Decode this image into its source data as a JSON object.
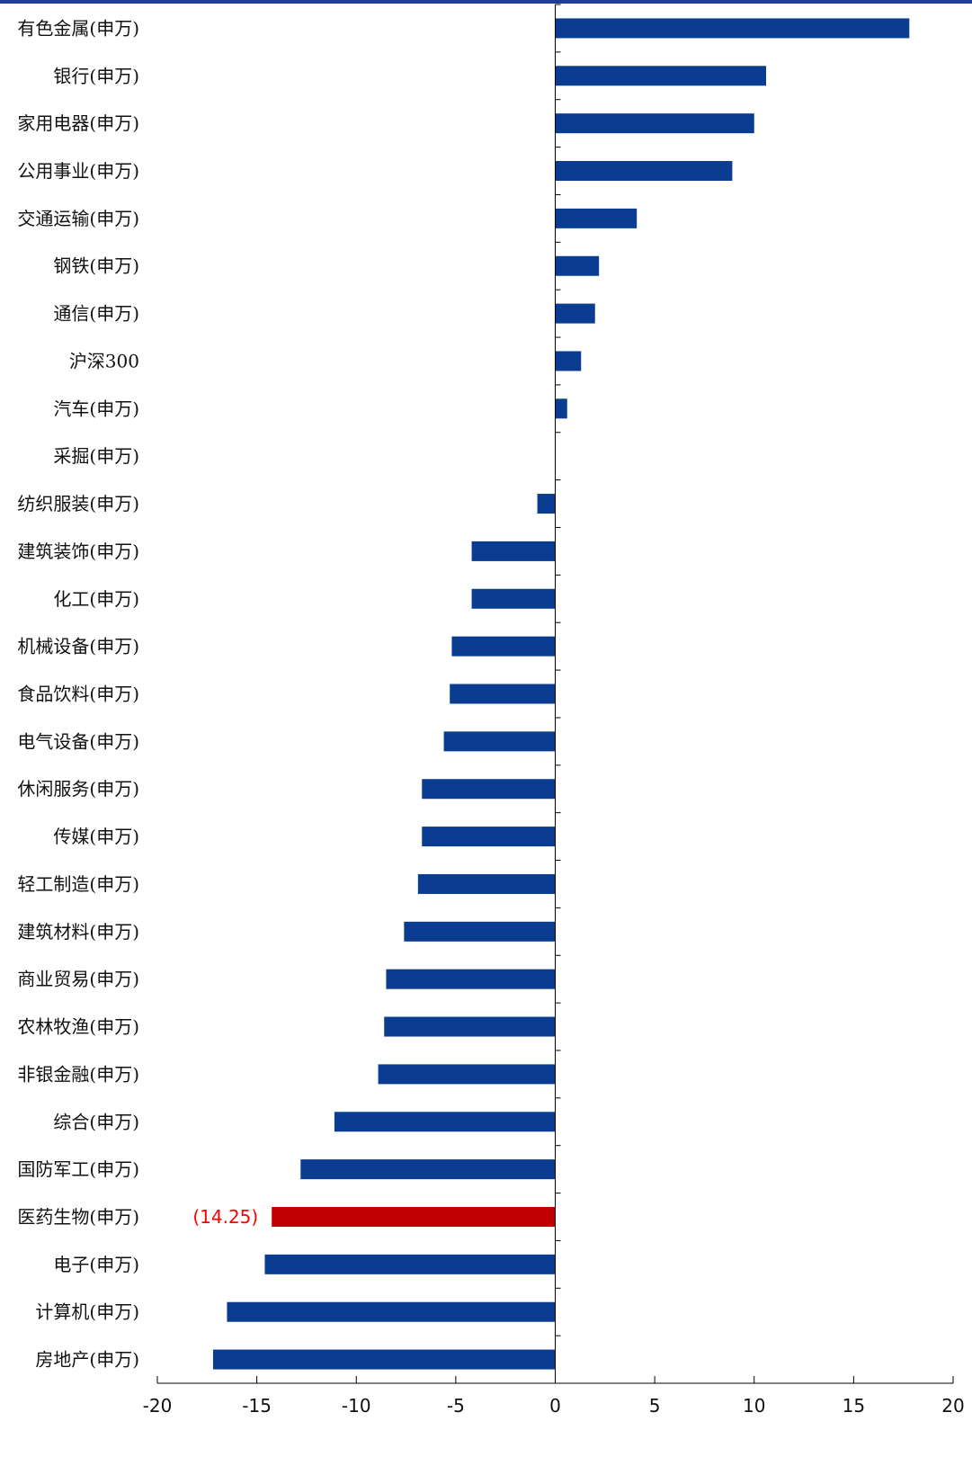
{
  "chart_data": {
    "type": "bar",
    "orientation": "horizontal",
    "categories": [
      "有色金属(申万)",
      "银行(申万)",
      "家用电器(申万)",
      "公用事业(申万)",
      "交通运输(申万)",
      "钢铁(申万)",
      "通信(申万)",
      "沪深300",
      "汽车(申万)",
      "采掘(申万)",
      "纺织服装(申万)",
      "建筑装饰(申万)",
      "化工(申万)",
      "机械设备(申万)",
      "食品饮料(申万)",
      "电气设备(申万)",
      "休闲服务(申万)",
      "传媒(申万)",
      "轻工制造(申万)",
      "建筑材料(申万)",
      "商业贸易(申万)",
      "农林牧渔(申万)",
      "非银金融(申万)",
      "综合(申万)",
      "国防军工(申万)",
      "医药生物(申万)",
      "电子(申万)",
      "计算机(申万)",
      "房地产(申万)"
    ],
    "values": [
      17.8,
      10.6,
      10.0,
      8.9,
      4.1,
      2.2,
      2.0,
      1.3,
      0.6,
      0.0,
      -0.9,
      -4.2,
      -4.2,
      -5.2,
      -5.3,
      -5.6,
      -6.7,
      -6.7,
      -6.9,
      -7.6,
      -8.5,
      -8.6,
      -8.9,
      -11.1,
      -12.8,
      -14.25,
      -14.6,
      -16.5,
      -17.2
    ],
    "xlim": [
      -20,
      20
    ],
    "xticks": [
      -20,
      -15,
      -10,
      -5,
      0,
      5,
      10,
      15,
      20
    ],
    "highlight": {
      "index": 25,
      "label": "(14.25)",
      "color": "#c00000",
      "label_color": "#ff0000"
    },
    "bar_color": "#0a3d91",
    "axis_color": "#000000",
    "grid": false,
    "legend": "none"
  }
}
